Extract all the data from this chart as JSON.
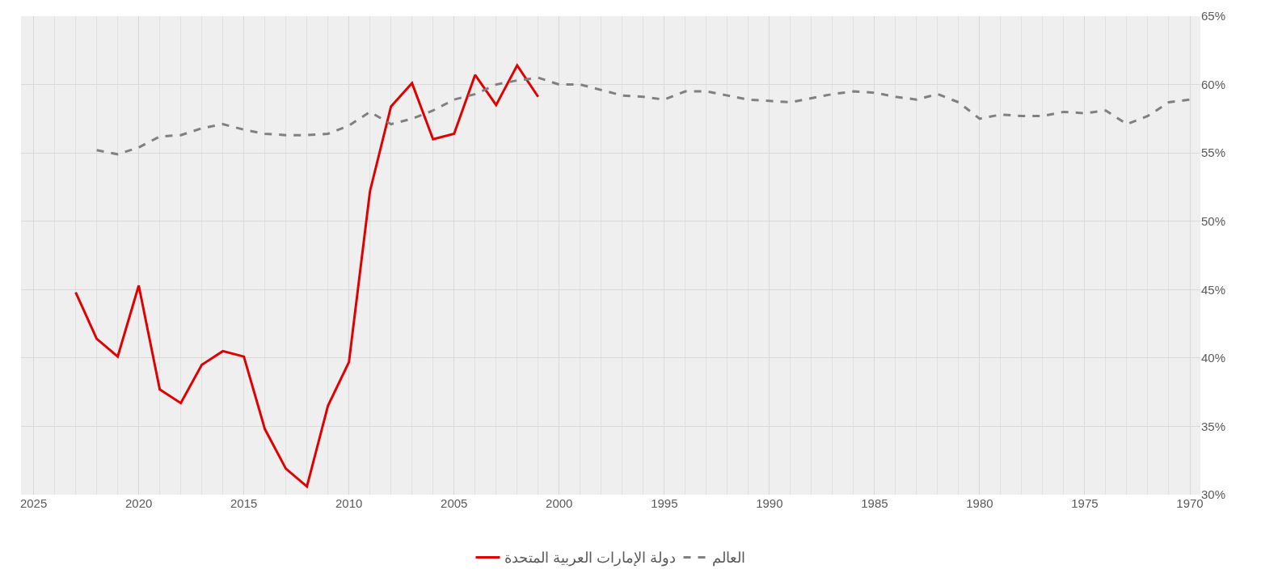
{
  "chart_data": {
    "type": "line",
    "xlim": [
      2025.6,
      1969.5
    ],
    "xticks": [
      2025,
      2020,
      2015,
      2010,
      2005,
      2000,
      1995,
      1990,
      1985,
      1980,
      1975,
      1970
    ],
    "ylim": [
      30,
      65
    ],
    "yticks": [
      {
        "value": 30,
        "label": "30%"
      },
      {
        "value": 35,
        "label": "35%"
      },
      {
        "value": 40,
        "label": "40%"
      },
      {
        "value": 45,
        "label": "45%"
      },
      {
        "value": 50,
        "label": "50%"
      },
      {
        "value": 55,
        "label": "55%"
      },
      {
        "value": 60,
        "label": "60%"
      },
      {
        "value": 65,
        "label": "65%"
      }
    ],
    "grid": true,
    "legend": "bottom",
    "series": [
      {
        "name": "دولة الإمارات العربية المتحدة",
        "color": "#e00000",
        "line_style": "solid",
        "x": [
          2023,
          2022,
          2021,
          2020,
          2019,
          2018,
          2017,
          2016,
          2015,
          2014,
          2013,
          2012,
          2011,
          2010,
          2009,
          2008,
          2007,
          2006,
          2005,
          2004,
          2003,
          2002,
          2001
        ],
        "values": [
          44.8,
          41.4,
          40.1,
          45.3,
          37.7,
          36.7,
          39.5,
          40.5,
          40.1,
          34.8,
          31.9,
          30.6,
          36.5,
          39.7,
          52.2,
          58.4,
          60.1,
          56.0,
          56.4,
          60.7,
          58.5,
          61.4,
          59.1
        ]
      },
      {
        "name": "العالم",
        "color": "#808080",
        "line_style": "dashed",
        "x": [
          2022,
          2021,
          2020,
          2019,
          2018,
          2017,
          2016,
          2015,
          2014,
          2013,
          2012,
          2011,
          2010,
          2009,
          2008,
          2007,
          2006,
          2005,
          2004,
          2003,
          2002,
          2001,
          2000,
          1999,
          1998,
          1997,
          1996,
          1995,
          1994,
          1993,
          1992,
          1991,
          1990,
          1989,
          1988,
          1987,
          1986,
          1985,
          1984,
          1983,
          1982,
          1981,
          1980,
          1979,
          1978,
          1977,
          1976,
          1975,
          1974,
          1973,
          1972,
          1971,
          1970
        ],
        "values": [
          55.2,
          54.9,
          55.4,
          56.2,
          56.3,
          56.8,
          57.1,
          56.7,
          56.4,
          56.3,
          56.3,
          56.4,
          57.0,
          58.0,
          57.1,
          57.5,
          58.1,
          58.9,
          59.3,
          60.0,
          60.3,
          60.5,
          60.0,
          60.0,
          59.6,
          59.2,
          59.1,
          58.9,
          59.5,
          59.5,
          59.2,
          58.9,
          58.8,
          58.7,
          59.0,
          59.3,
          59.5,
          59.4,
          59.1,
          58.9,
          59.3,
          58.7,
          57.5,
          57.8,
          57.7,
          57.7,
          58.0,
          57.9,
          58.1,
          57.1,
          57.7,
          58.7,
          58.9
        ]
      }
    ]
  }
}
